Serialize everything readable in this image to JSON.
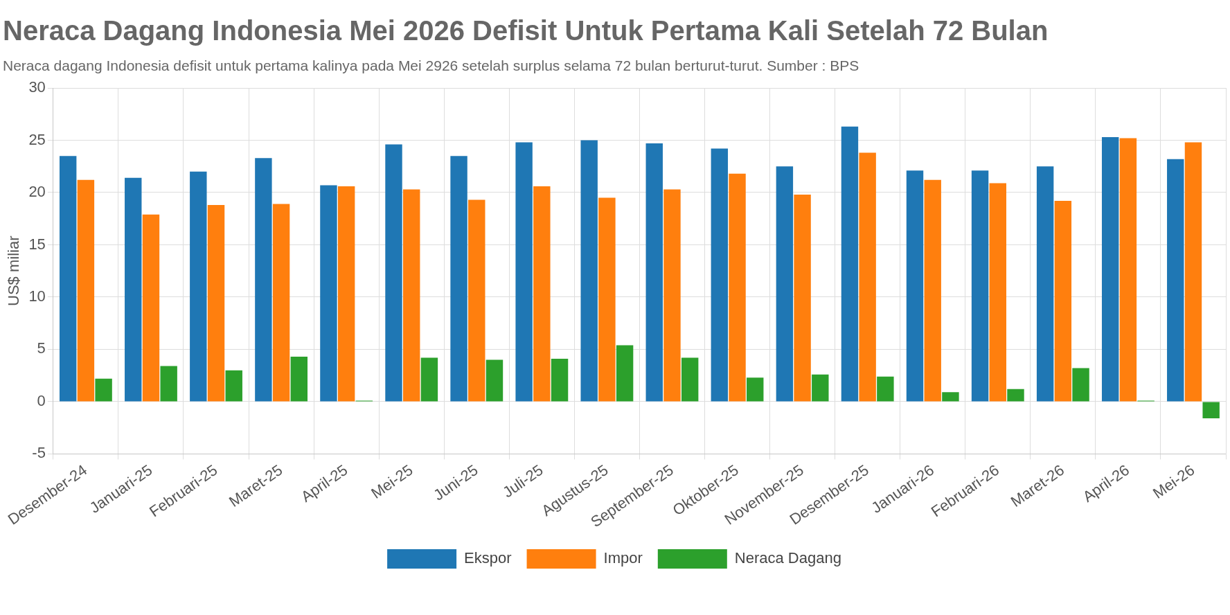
{
  "chart_data": {
    "type": "bar",
    "title": "Neraca Dagang Indonesia Mei 2026 Defisit Untuk Pertama Kali Setelah 72 Bulan",
    "subtitle": "Neraca dagang Indonesia defisit untuk pertama kalinya pada Mei 2926 setelah surplus selama 72 bulan berturut-turut. Sumber : BPS",
    "ylabel": "US$ miliar",
    "categories": [
      "Desember-24",
      "Januari-25",
      "Februari-25",
      "Maret-25",
      "April-25",
      "Mei-25",
      "Juni-25",
      "Juli-25",
      "Agustus-25",
      "September-25",
      "Oktober-25",
      "November-25",
      "Desember-25",
      "Januari-26",
      "Februari-26",
      "Maret-26",
      "April-26",
      "Mei-26"
    ],
    "series": [
      {
        "name": "Ekspor",
        "color": "#1f77b4",
        "values": [
          23.5,
          21.4,
          22.0,
          23.3,
          20.7,
          24.6,
          23.5,
          24.8,
          25.0,
          24.7,
          24.2,
          22.5,
          26.3,
          22.1,
          22.1,
          22.5,
          25.3,
          23.2
        ]
      },
      {
        "name": "Impor",
        "color": "#ff7f0e",
        "values": [
          21.2,
          17.9,
          18.8,
          18.9,
          20.6,
          20.3,
          19.3,
          20.6,
          19.5,
          20.3,
          21.8,
          19.8,
          23.8,
          21.2,
          20.9,
          19.2,
          25.2,
          24.8
        ]
      },
      {
        "name": "Neraca Dagang",
        "color": "#2ca02c",
        "values": [
          2.2,
          3.4,
          3.0,
          4.3,
          0.1,
          4.2,
          4.0,
          4.1,
          5.4,
          4.2,
          2.3,
          2.6,
          2.4,
          0.9,
          1.2,
          3.2,
          0.1,
          -1.6
        ]
      }
    ],
    "ylim": [
      -5,
      30
    ],
    "yticks": [
      -5,
      0,
      5,
      10,
      15,
      20,
      25,
      30
    ],
    "grid": true,
    "legend": "bottom"
  }
}
